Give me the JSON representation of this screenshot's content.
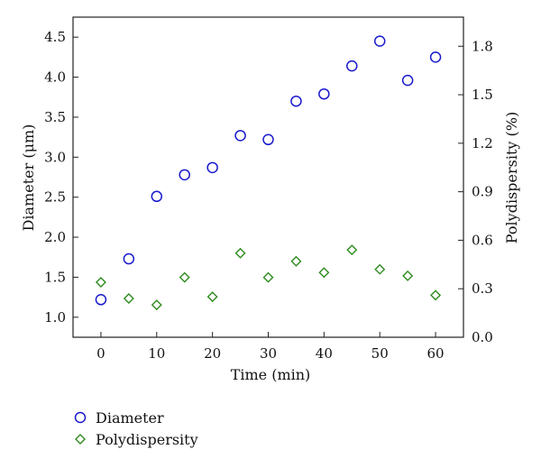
{
  "chart_data": {
    "type": "scatter",
    "xlabel": "Time (min)",
    "ylabel_left": "Diameter (μm)",
    "ylabel_right": "Polydispersity (%)",
    "x_ticks": [
      "0",
      "10",
      "20",
      "30",
      "40",
      "50",
      "60"
    ],
    "y_left_ticks": [
      "1.0",
      "1.5",
      "2.0",
      "2.5",
      "3.0",
      "3.5",
      "4.0",
      "4.5"
    ],
    "y_right_ticks": [
      "0.0",
      "0.3",
      "0.6",
      "0.9",
      "1.2",
      "1.5",
      "1.8"
    ],
    "xlim": [
      -5,
      65
    ],
    "ylim_left": [
      0.75,
      4.75
    ],
    "ylim_right": [
      0.0,
      1.98
    ],
    "grid": false,
    "legend_position": "bottom-left",
    "series": [
      {
        "name": "Diameter",
        "axis": "left",
        "marker": "circle",
        "color": "#1a1acc",
        "x": [
          0,
          5,
          10,
          15,
          20,
          25,
          30,
          35,
          40,
          45,
          50,
          55,
          60
        ],
        "y": [
          1.22,
          1.73,
          2.51,
          2.78,
          2.87,
          3.27,
          3.22,
          3.7,
          3.79,
          4.14,
          4.45,
          3.96,
          4.25
        ]
      },
      {
        "name": "Polydispersity",
        "axis": "right",
        "marker": "diamond",
        "color": "#2e8b1e",
        "x": [
          0,
          5,
          10,
          15,
          20,
          25,
          30,
          35,
          40,
          45,
          50,
          55,
          60
        ],
        "y": [
          0.34,
          0.24,
          0.2,
          0.37,
          0.25,
          0.52,
          0.37,
          0.47,
          0.4,
          0.54,
          0.42,
          0.38,
          0.26
        ]
      }
    ]
  }
}
